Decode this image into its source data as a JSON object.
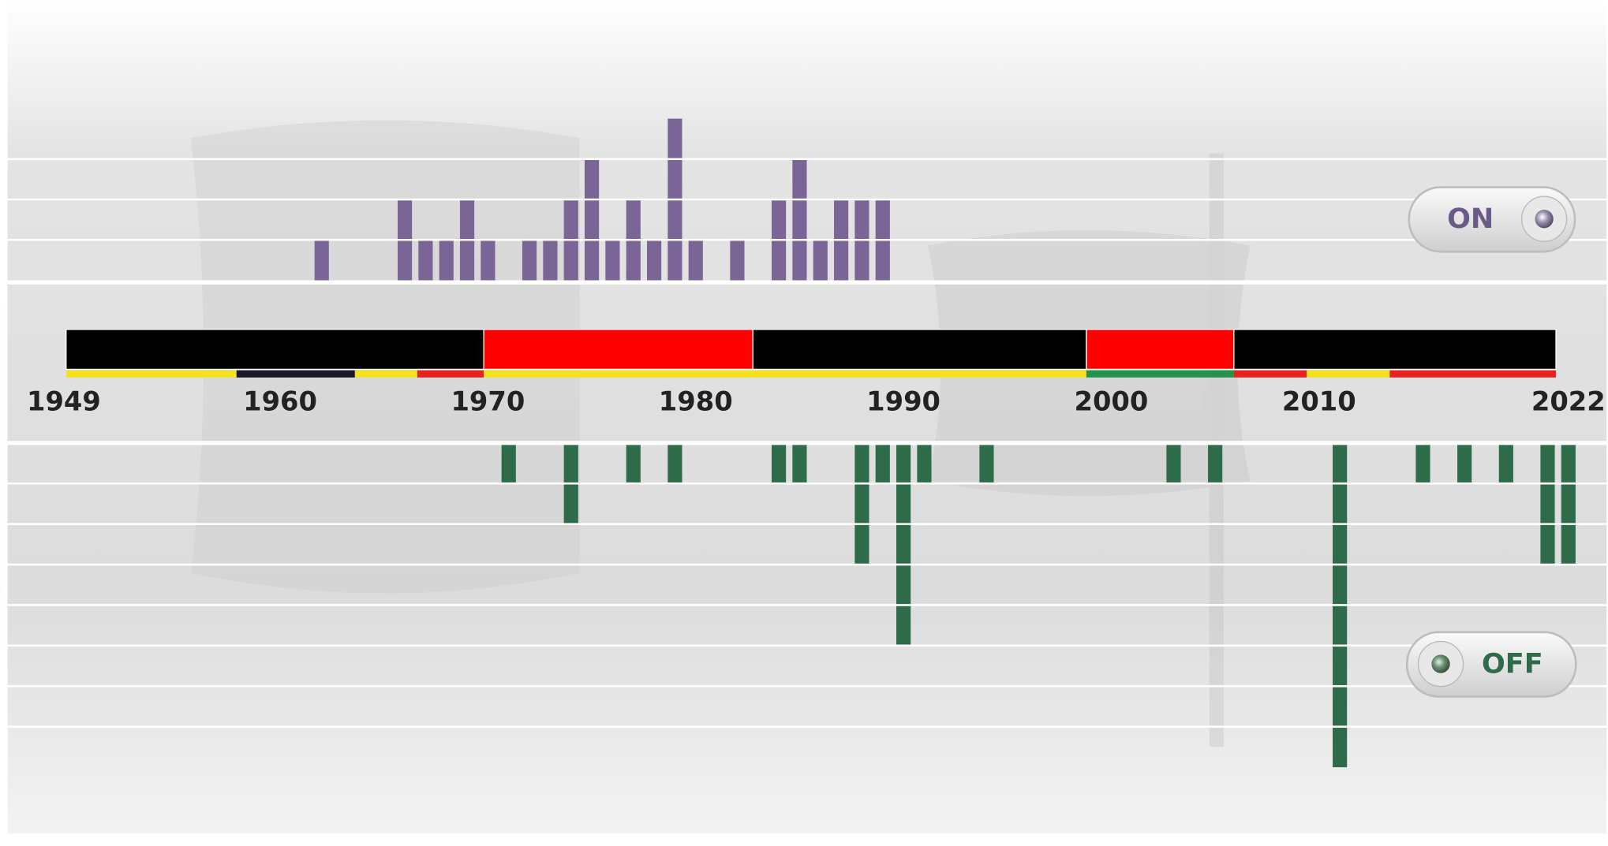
{
  "chart_data": {
    "type": "bar",
    "xlim": [
      1949,
      2023
    ],
    "xticks": [
      1949,
      1960,
      1970,
      1980,
      1990,
      2000,
      2010,
      2022
    ],
    "ylim": [
      0,
      4
    ],
    "yticks": [
      0,
      1,
      2,
      3
    ],
    "y2lim": [
      0,
      8
    ],
    "y2ticks": [
      0,
      1,
      2,
      3,
      4,
      5,
      6,
      7
    ],
    "grid": true,
    "series": [
      {
        "name": "ON",
        "color": "#7b6596",
        "x": [
          1962,
          1966,
          1967,
          1968,
          1969,
          1970,
          1972,
          1973,
          1974,
          1975,
          1976,
          1977,
          1978,
          1979,
          1980,
          1982,
          1984,
          1985,
          1986,
          1987,
          1988,
          1989
        ],
        "values": [
          1,
          2,
          1,
          1,
          2,
          1,
          1,
          1,
          2,
          3,
          1,
          2,
          1,
          4,
          1,
          1,
          2,
          3,
          1,
          2,
          2,
          2
        ]
      },
      {
        "name": "OFF",
        "color": "#2e6b48",
        "axis": "y2",
        "x": [
          1971,
          1974,
          1977,
          1979,
          1984,
          1985,
          1988,
          1989,
          1990,
          1991,
          1994,
          2003,
          2005,
          2011,
          2015,
          2017,
          2019,
          2021,
          2022
        ],
        "values": [
          1,
          2,
          1,
          1,
          1,
          1,
          3,
          1,
          5,
          1,
          1,
          1,
          1,
          8,
          1,
          1,
          1,
          3,
          3
        ]
      }
    ],
    "governments": [
      {
        "start": 1949.7,
        "end": 1969.8,
        "color": "#000000"
      },
      {
        "start": 1969.8,
        "end": 1982.75,
        "color": "#ff0000"
      },
      {
        "start": 1982.75,
        "end": 1998.8,
        "color": "#000000"
      },
      {
        "start": 1998.8,
        "end": 2005.9,
        "color": "#ff0000"
      },
      {
        "start": 2005.9,
        "end": 2021.4,
        "color": "#000000"
      }
    ],
    "partners": [
      {
        "start": 1949.7,
        "end": 1957.9,
        "color": "#f5e21d"
      },
      {
        "start": 1957.9,
        "end": 1963.6,
        "color": "#1a1a2a"
      },
      {
        "start": 1963.6,
        "end": 1966.6,
        "color": "#f5e21d"
      },
      {
        "start": 1966.6,
        "end": 1969.8,
        "color": "#e82020"
      },
      {
        "start": 1969.8,
        "end": 1998.8,
        "color": "#f5e21d"
      },
      {
        "start": 1998.8,
        "end": 2005.9,
        "color": "#23934a"
      },
      {
        "start": 2005.9,
        "end": 2009.4,
        "color": "#e82020"
      },
      {
        "start": 2009.4,
        "end": 2013.4,
        "color": "#f5e21d"
      },
      {
        "start": 2013.4,
        "end": 2021.4,
        "color": "#e82020"
      }
    ]
  }
}
